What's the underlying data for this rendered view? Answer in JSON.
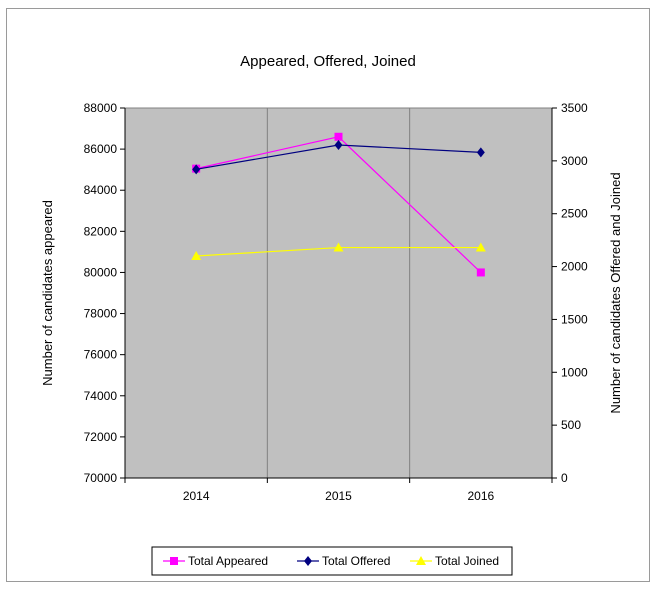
{
  "chart_data": {
    "type": "line",
    "title": "Appeared, Offered, Joined",
    "categories": [
      "2014",
      "2015",
      "2016"
    ],
    "ylabel": "Number of candidates  appeared",
    "ylabel_right": "Number of candidates Offered and Joined",
    "ylim": [
      70000,
      88000
    ],
    "ylim_right": [
      0,
      3500
    ],
    "yticks": [
      "88000",
      "86000",
      "84000",
      "82000",
      "80000",
      "78000",
      "76000",
      "74000",
      "72000",
      "70000"
    ],
    "yticks_right": [
      "3500",
      "3000",
      "2500",
      "2000",
      "1500",
      "1000",
      "500",
      "0"
    ],
    "plot_background": "#c0c0c0",
    "grid": "vertical",
    "legend_position": "bottom",
    "series": [
      {
        "name": "Total Appeared",
        "axis": "left",
        "color": "#ff00ff",
        "marker": "square",
        "values": [
          85050,
          86600,
          80000
        ]
      },
      {
        "name": "Total Offered",
        "axis": "right",
        "color": "#000080",
        "marker": "diamond",
        "values": [
          2920,
          3150,
          3080
        ]
      },
      {
        "name": "Total Joined",
        "axis": "right",
        "color": "#ffff00",
        "marker": "triangle",
        "values": [
          2100,
          2180,
          2180
        ]
      }
    ]
  }
}
